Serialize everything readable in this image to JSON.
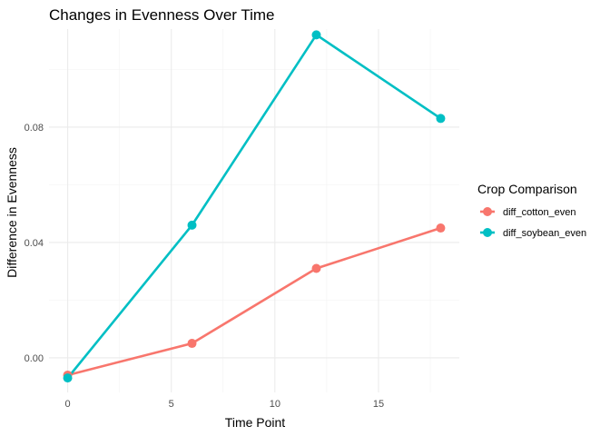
{
  "chart_data": {
    "type": "line",
    "title": "Changes in Evenness Over Time",
    "xlabel": "Time Point",
    "ylabel": "Difference in Evenness",
    "xlim": [
      -0.9,
      18.9
    ],
    "ylim": [
      -0.012,
      0.114
    ],
    "x_ticks": [
      0,
      5,
      10,
      15
    ],
    "x_tick_labels": [
      "0",
      "5",
      "10",
      "15"
    ],
    "y_ticks": [
      0.0,
      0.04,
      0.08
    ],
    "y_tick_labels": [
      "0.00",
      "0.04",
      "0.08"
    ],
    "grid": true,
    "legend": {
      "title": "Crop Comparison",
      "position": "right"
    },
    "series": [
      {
        "name": "diff_cotton_even",
        "color": "#F8766D",
        "x": [
          0,
          6,
          12,
          18
        ],
        "y": [
          -0.006,
          0.005,
          0.031,
          0.045
        ]
      },
      {
        "name": "diff_soybean_even",
        "color": "#00BFC4",
        "x": [
          0,
          6,
          12,
          18
        ],
        "y": [
          -0.007,
          0.046,
          0.112,
          0.083
        ]
      }
    ]
  }
}
